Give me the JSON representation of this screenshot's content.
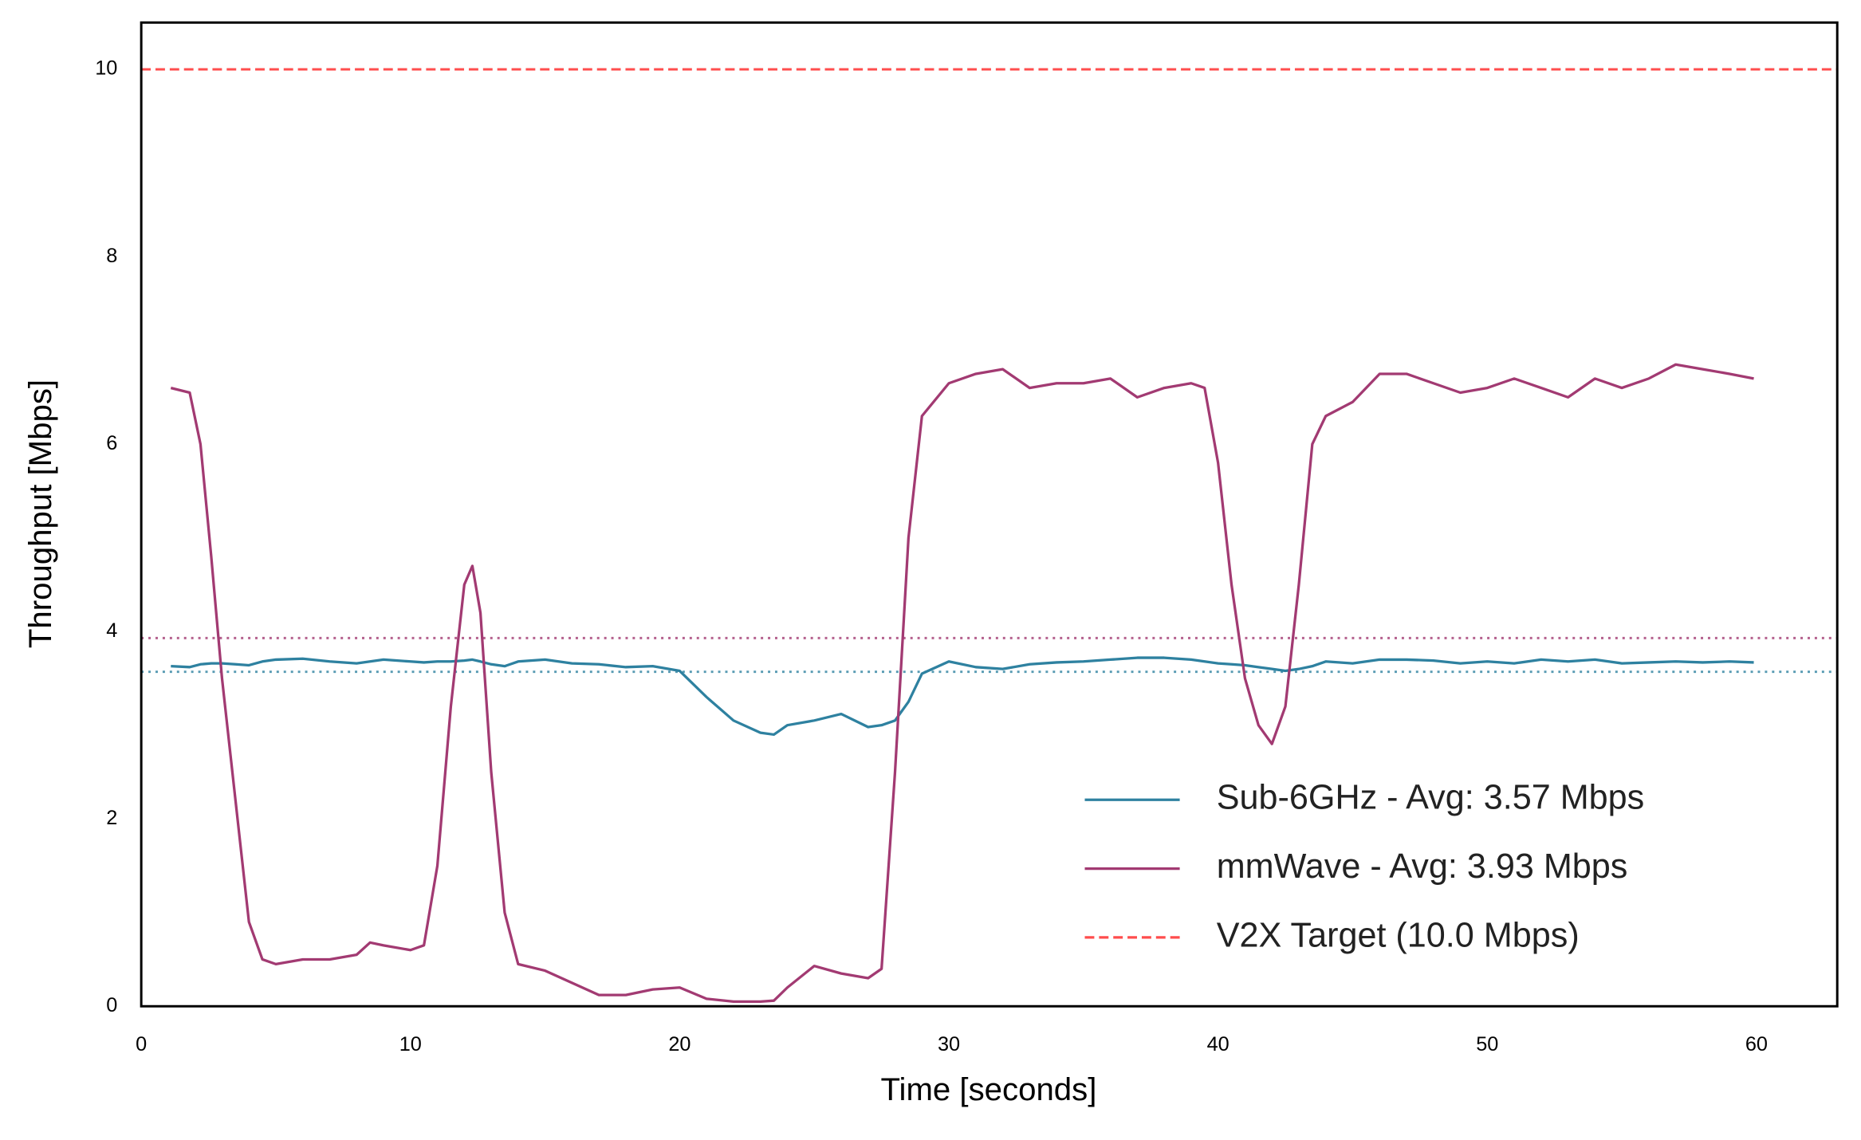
{
  "chart_data": {
    "type": "line",
    "xlabel": "Time [seconds]",
    "ylabel": "Throughput [Mbps]",
    "x": [
      1.1,
      1.8,
      2.2,
      2.6,
      3,
      3.5,
      4,
      4.5,
      5,
      6,
      7,
      8,
      8.5,
      9,
      10,
      10.5,
      11,
      11.5,
      12,
      12.3,
      12.6,
      13,
      13.5,
      14,
      15,
      16,
      17,
      18,
      19,
      20,
      21,
      22,
      23,
      23.5,
      24,
      25,
      26,
      27,
      27.5,
      28,
      28.5,
      29,
      30,
      31,
      32,
      33,
      34,
      35,
      36,
      37,
      38,
      39,
      39.5,
      40,
      40.5,
      41,
      41.5,
      42,
      42.5,
      43,
      43.5,
      44,
      45,
      46,
      47,
      48,
      49,
      50,
      51,
      52,
      53,
      54,
      55,
      56,
      57,
      58,
      59,
      59.9
    ],
    "series": [
      {
        "name": "Sub-6GHz - Avg: 3.57 Mbps",
        "color": "#2e81a0",
        "avg": 3.57,
        "values": [
          3.63,
          3.62,
          3.65,
          3.66,
          3.66,
          3.65,
          3.64,
          3.68,
          3.7,
          3.71,
          3.68,
          3.66,
          3.68,
          3.7,
          3.68,
          3.67,
          3.68,
          3.68,
          3.69,
          3.7,
          3.68,
          3.65,
          3.63,
          3.68,
          3.7,
          3.66,
          3.65,
          3.62,
          3.63,
          3.58,
          3.3,
          3.05,
          2.92,
          2.9,
          3.0,
          3.05,
          3.12,
          2.98,
          3.0,
          3.05,
          3.25,
          3.55,
          3.68,
          3.62,
          3.6,
          3.65,
          3.67,
          3.68,
          3.7,
          3.72,
          3.72,
          3.7,
          3.68,
          3.66,
          3.65,
          3.64,
          3.62,
          3.6,
          3.58,
          3.6,
          3.63,
          3.68,
          3.66,
          3.7,
          3.7,
          3.69,
          3.66,
          3.68,
          3.66,
          3.7,
          3.68,
          3.7,
          3.66,
          3.67,
          3.68,
          3.67,
          3.68,
          3.67
        ]
      },
      {
        "name": "mmWave - Avg: 3.93 Mbps",
        "color": "#a23a72",
        "avg": 3.93,
        "values": [
          6.6,
          6.55,
          6.0,
          4.8,
          3.5,
          2.2,
          0.9,
          0.5,
          0.45,
          0.5,
          0.5,
          0.55,
          0.68,
          0.65,
          0.6,
          0.65,
          1.5,
          3.2,
          4.5,
          4.7,
          4.2,
          2.5,
          1.0,
          0.45,
          0.38,
          0.25,
          0.12,
          0.12,
          0.18,
          0.2,
          0.08,
          0.05,
          0.05,
          0.06,
          0.2,
          0.43,
          0.35,
          0.3,
          0.4,
          2.5,
          5.0,
          6.3,
          6.65,
          6.75,
          6.8,
          6.6,
          6.65,
          6.65,
          6.7,
          6.5,
          6.6,
          6.65,
          6.6,
          5.8,
          4.5,
          3.5,
          3.0,
          2.8,
          3.2,
          4.5,
          6.0,
          6.3,
          6.45,
          6.75,
          6.75,
          6.65,
          6.55,
          6.6,
          6.7,
          6.6,
          6.5,
          6.7,
          6.6,
          6.7,
          6.85,
          6.8,
          6.75,
          6.7
        ]
      }
    ],
    "target": {
      "name": "V2X Target (10.0 Mbps)",
      "value": 10,
      "color": "#ff4d4d"
    },
    "xlim": [
      0,
      63
    ],
    "ylim": [
      0,
      10.5
    ],
    "xticks": [
      0,
      10,
      20,
      30,
      40,
      50,
      60
    ],
    "yticks": [
      0,
      2,
      4,
      6,
      8,
      10
    ],
    "legend": "lower right"
  }
}
